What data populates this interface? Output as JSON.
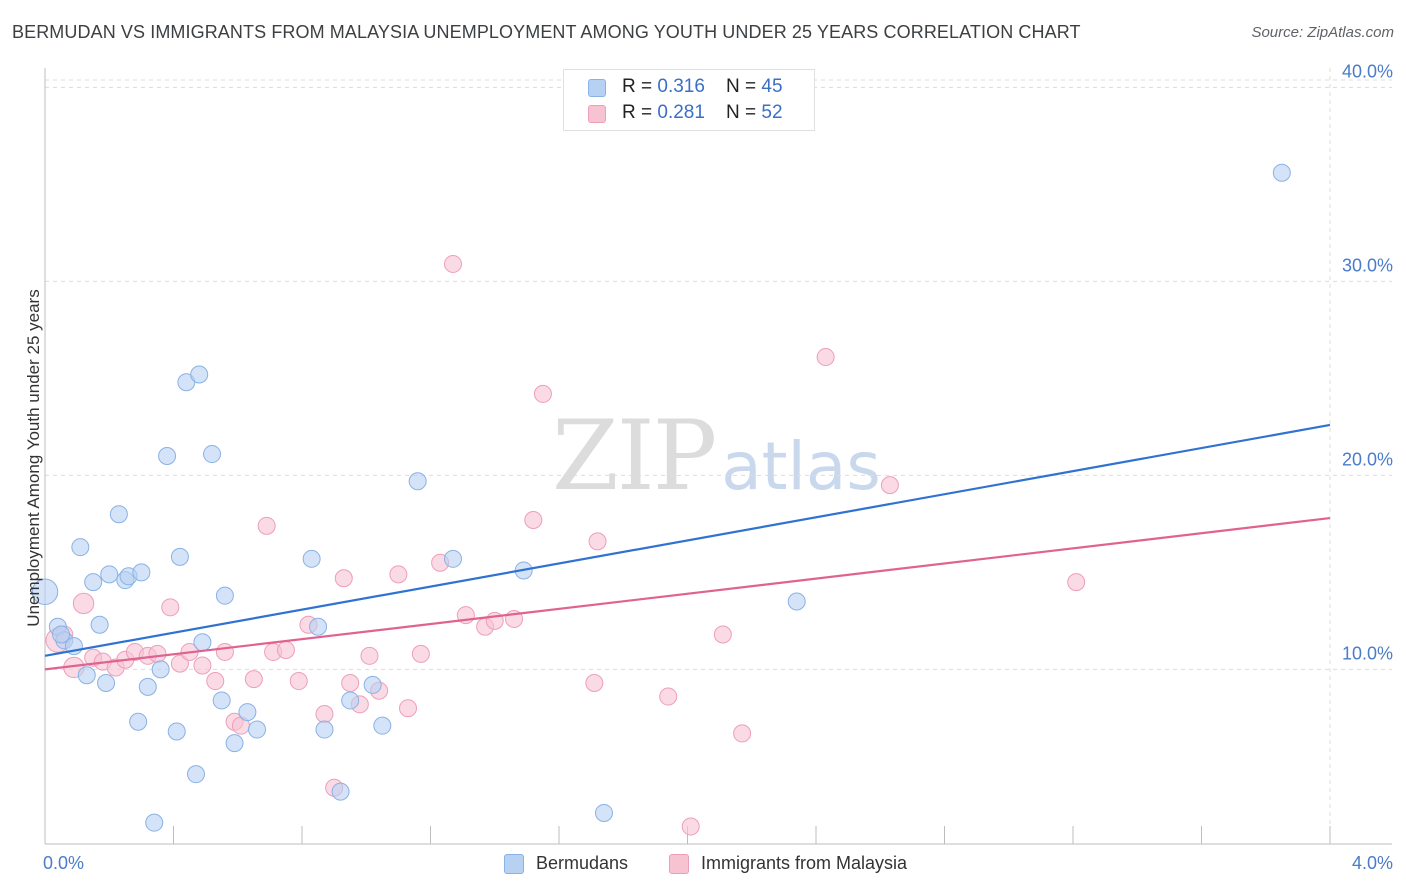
{
  "title": "BERMUDAN VS IMMIGRANTS FROM MALAYSIA UNEMPLOYMENT AMONG YOUTH UNDER 25 YEARS CORRELATION CHART",
  "source": "Source: ZipAtlas.com",
  "watermark": {
    "zip": "ZIP",
    "atlas": "atlas"
  },
  "legend": {
    "rows": [
      {
        "r_label": "R = ",
        "r_value": "0.316",
        "n_label": "N = ",
        "n_value": "45"
      },
      {
        "r_label": "R = ",
        "r_value": "0.281",
        "n_label": "N = ",
        "n_value": "52"
      }
    ]
  },
  "colors": {
    "bermudans_fill": "#b7d1f2",
    "bermudans_stroke": "#89b2e6",
    "bermudans_line": "#2f72d2",
    "malaysia_fill": "#f7c3d3",
    "malaysia_stroke": "#ee9eb8",
    "malaysia_line": "#e0628f",
    "axis_label": "#4a7cc9",
    "grid": "#dcdcdc"
  },
  "chart_data": {
    "type": "scatter",
    "title": "BERMUDAN VS IMMIGRANTS FROM MALAYSIA UNEMPLOYMENT AMONG YOUTH UNDER 25 YEARS CORRELATION CHART",
    "xlabel": "",
    "ylabel": "Unemployment Among Youth under 25 years",
    "xlim": [
      0,
      4
    ],
    "ylim": [
      1,
      41
    ],
    "x_tick_labels": [
      "0.0%",
      "4.0%"
    ],
    "y_ticks": [
      10,
      20,
      30,
      40
    ],
    "y_tick_labels": [
      "10.0%",
      "20.0%",
      "30.0%",
      "40.0%"
    ],
    "grid": true,
    "legend_position": "top-center",
    "series": [
      {
        "name": "Bermudans",
        "r": 0.316,
        "n": 45,
        "trend": {
          "x": [
            0,
            4
          ],
          "y": [
            10.7,
            22.6
          ]
        },
        "points": [
          {
            "x": 0.0,
            "y": 14.0,
            "s": 1.5
          },
          {
            "x": 0.04,
            "y": 12.2
          },
          {
            "x": 0.06,
            "y": 11.5
          },
          {
            "x": 0.09,
            "y": 11.2
          },
          {
            "x": 0.11,
            "y": 16.3
          },
          {
            "x": 0.13,
            "y": 9.7
          },
          {
            "x": 0.15,
            "y": 14.5
          },
          {
            "x": 0.17,
            "y": 12.3
          },
          {
            "x": 0.19,
            "y": 9.3
          },
          {
            "x": 0.2,
            "y": 14.9
          },
          {
            "x": 0.23,
            "y": 18.0
          },
          {
            "x": 0.25,
            "y": 14.6
          },
          {
            "x": 0.26,
            "y": 14.8
          },
          {
            "x": 0.29,
            "y": 7.3
          },
          {
            "x": 0.3,
            "y": 15.0
          },
          {
            "x": 0.32,
            "y": 9.1
          },
          {
            "x": 0.34,
            "y": 2.1
          },
          {
            "x": 0.36,
            "y": 10.0
          },
          {
            "x": 0.38,
            "y": 21.0
          },
          {
            "x": 0.41,
            "y": 6.8
          },
          {
            "x": 0.42,
            "y": 15.8
          },
          {
            "x": 0.44,
            "y": 24.8
          },
          {
            "x": 0.47,
            "y": 4.6
          },
          {
            "x": 0.48,
            "y": 25.2
          },
          {
            "x": 0.49,
            "y": 11.4
          },
          {
            "x": 0.52,
            "y": 21.1
          },
          {
            "x": 0.55,
            "y": 8.4
          },
          {
            "x": 0.56,
            "y": 13.8
          },
          {
            "x": 0.59,
            "y": 6.2
          },
          {
            "x": 0.63,
            "y": 7.8
          },
          {
            "x": 0.66,
            "y": 6.9
          },
          {
            "x": 0.83,
            "y": 15.7
          },
          {
            "x": 0.85,
            "y": 12.2
          },
          {
            "x": 0.87,
            "y": 6.9
          },
          {
            "x": 0.92,
            "y": 3.7
          },
          {
            "x": 0.95,
            "y": 8.4
          },
          {
            "x": 1.02,
            "y": 9.2
          },
          {
            "x": 1.05,
            "y": 7.1
          },
          {
            "x": 1.16,
            "y": 19.7
          },
          {
            "x": 1.27,
            "y": 15.7
          },
          {
            "x": 1.49,
            "y": 15.1
          },
          {
            "x": 1.74,
            "y": 2.6
          },
          {
            "x": 2.34,
            "y": 13.5
          },
          {
            "x": 3.85,
            "y": 35.6
          },
          {
            "x": 0.05,
            "y": 11.8
          }
        ]
      },
      {
        "name": "Immigrants from Malaysia",
        "r": 0.281,
        "n": 52,
        "trend": {
          "x": [
            0,
            4
          ],
          "y": [
            10.0,
            17.8
          ]
        },
        "points": [
          {
            "x": 0.04,
            "y": 11.5,
            "s": 1.4
          },
          {
            "x": 0.06,
            "y": 11.8
          },
          {
            "x": 0.09,
            "y": 10.1,
            "s": 1.2
          },
          {
            "x": 0.12,
            "y": 13.4,
            "s": 1.2
          },
          {
            "x": 0.15,
            "y": 10.6
          },
          {
            "x": 0.18,
            "y": 10.4
          },
          {
            "x": 0.22,
            "y": 10.1
          },
          {
            "x": 0.25,
            "y": 10.5
          },
          {
            "x": 0.28,
            "y": 10.9
          },
          {
            "x": 0.32,
            "y": 10.7
          },
          {
            "x": 0.35,
            "y": 10.8
          },
          {
            "x": 0.39,
            "y": 13.2
          },
          {
            "x": 0.42,
            "y": 10.3
          },
          {
            "x": 0.45,
            "y": 10.9
          },
          {
            "x": 0.49,
            "y": 10.2
          },
          {
            "x": 0.53,
            "y": 9.4
          },
          {
            "x": 0.56,
            "y": 10.9
          },
          {
            "x": 0.59,
            "y": 7.3
          },
          {
            "x": 0.61,
            "y": 7.1
          },
          {
            "x": 0.65,
            "y": 9.5
          },
          {
            "x": 0.69,
            "y": 17.4
          },
          {
            "x": 0.71,
            "y": 10.9
          },
          {
            "x": 0.75,
            "y": 11.0
          },
          {
            "x": 0.79,
            "y": 9.4
          },
          {
            "x": 0.82,
            "y": 12.3
          },
          {
            "x": 0.87,
            "y": 7.7
          },
          {
            "x": 0.9,
            "y": 3.9
          },
          {
            "x": 0.93,
            "y": 14.7
          },
          {
            "x": 0.95,
            "y": 9.3
          },
          {
            "x": 0.98,
            "y": 8.2
          },
          {
            "x": 1.01,
            "y": 10.7
          },
          {
            "x": 1.04,
            "y": 8.9
          },
          {
            "x": 1.1,
            "y": 14.9
          },
          {
            "x": 1.13,
            "y": 8.0
          },
          {
            "x": 1.17,
            "y": 10.8
          },
          {
            "x": 1.23,
            "y": 15.5
          },
          {
            "x": 1.27,
            "y": 30.9
          },
          {
            "x": 1.31,
            "y": 12.8
          },
          {
            "x": 1.37,
            "y": 12.2
          },
          {
            "x": 1.4,
            "y": 12.5
          },
          {
            "x": 1.46,
            "y": 12.6
          },
          {
            "x": 1.52,
            "y": 17.7
          },
          {
            "x": 1.55,
            "y": 24.2
          },
          {
            "x": 1.71,
            "y": 9.3
          },
          {
            "x": 1.72,
            "y": 16.6
          },
          {
            "x": 1.94,
            "y": 8.6
          },
          {
            "x": 2.01,
            "y": 1.9
          },
          {
            "x": 2.11,
            "y": 11.8
          },
          {
            "x": 2.17,
            "y": 6.7
          },
          {
            "x": 2.43,
            "y": 26.1
          },
          {
            "x": 2.63,
            "y": 19.5
          },
          {
            "x": 3.21,
            "y": 14.5
          }
        ]
      }
    ]
  },
  "bottom_legend": [
    "Bermudans",
    "Immigrants from Malaysia"
  ]
}
